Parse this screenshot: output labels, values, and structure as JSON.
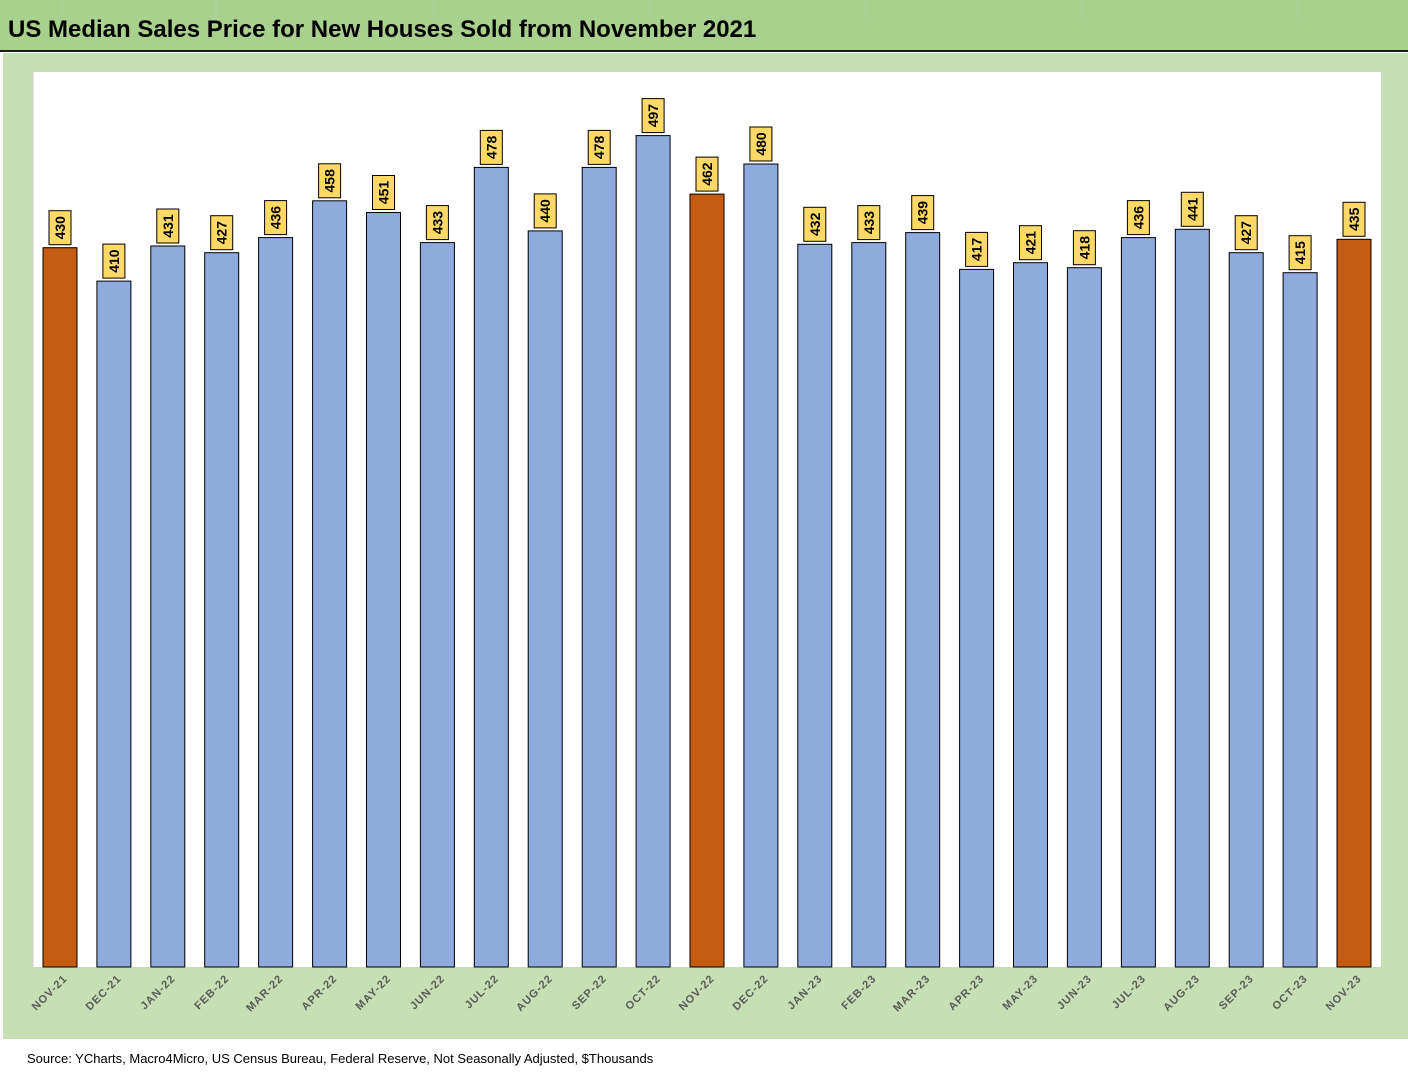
{
  "title": "US Median Sales Price for New Houses Sold from November 2021",
  "source": "Source: YCharts, Macro4Micro, US Census Bureau, Federal Reserve, Not Seasonally Adjusted, $Thousands",
  "colors": {
    "title_bg": "#a9d18e",
    "frame_bg": "#c5e0b4",
    "bar_default": "#8faadc",
    "bar_highlight": "#c55a11",
    "label_bg": "#ffd966"
  },
  "chart_data": {
    "type": "bar",
    "title": "US Median Sales Price for New Houses Sold from November 2021",
    "xlabel": "",
    "ylabel": "",
    "ylim": [
      0,
      535
    ],
    "grid": false,
    "legend": "none",
    "categories": [
      "NOV-21",
      "DEC-21",
      "JAN-22",
      "FEB-22",
      "MAR-22",
      "APR-22",
      "MAY-22",
      "JUN-22",
      "JUL-22",
      "AUG-22",
      "SEP-22",
      "OCT-22",
      "NOV-22",
      "DEC-22",
      "JAN-23",
      "FEB-23",
      "MAR-23",
      "APR-23",
      "MAY-23",
      "JUN-23",
      "JUL-23",
      "AUG-23",
      "SEP-23",
      "OCT-23",
      "NOV-23"
    ],
    "values": [
      430,
      410,
      431,
      427,
      436,
      458,
      451,
      433,
      478,
      440,
      478,
      497,
      462,
      480,
      432,
      433,
      439,
      417,
      421,
      418,
      436,
      441,
      427,
      415,
      435
    ],
    "highlighted": [
      "NOV-21",
      "NOV-22",
      "NOV-23"
    ],
    "data_labels": true
  }
}
